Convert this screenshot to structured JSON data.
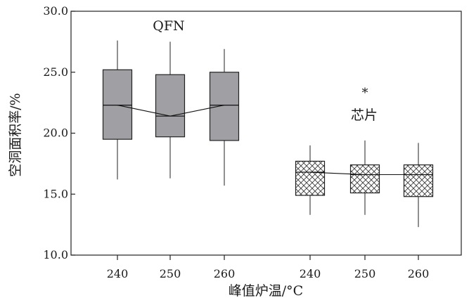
{
  "chart_data": {
    "type": "box",
    "ylabel": "空洞面积率/%",
    "xlabel": "峰值炉温/°C",
    "ylim": [
      10.0,
      30.0
    ],
    "yticks": [
      "10.0",
      "15.0",
      "20.0",
      "25.0",
      "30.0"
    ],
    "grid": false,
    "groups": [
      {
        "label": "QFN",
        "fill": "#a0a0a4",
        "pattern": "solid",
        "boxes": [
          {
            "x": "240",
            "whisker_low": 16.2,
            "q1": 19.5,
            "median": 22.3,
            "q3": 25.2,
            "whisker_high": 27.6
          },
          {
            "x": "250",
            "whisker_low": 16.3,
            "q1": 19.7,
            "median": 21.4,
            "q3": 24.8,
            "whisker_high": 27.5
          },
          {
            "x": "260",
            "whisker_low": 15.7,
            "q1": 19.4,
            "median": 22.3,
            "q3": 25.0,
            "whisker_high": 26.9
          }
        ]
      },
      {
        "label": "芯片",
        "fill": "#ffffff",
        "pattern": "crosshatch",
        "boxes": [
          {
            "x": "240",
            "whisker_low": 13.3,
            "q1": 14.9,
            "median": 16.8,
            "q3": 17.7,
            "whisker_high": 19.0
          },
          {
            "x": "250",
            "whisker_low": 13.3,
            "q1": 15.1,
            "median": 16.6,
            "q3": 17.4,
            "whisker_high": 19.4
          },
          {
            "x": "260",
            "whisker_low": 12.3,
            "q1": 14.8,
            "median": 16.6,
            "q3": 17.4,
            "whisker_high": 19.2
          }
        ],
        "outliers": [
          {
            "x": "250",
            "y": 23.5,
            "marker": "*"
          }
        ]
      }
    ]
  }
}
